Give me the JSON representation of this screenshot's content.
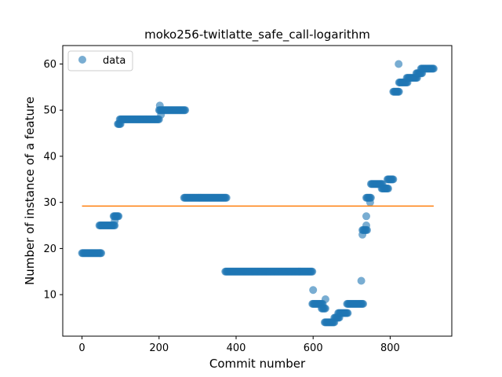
{
  "chart_data": {
    "type": "scatter",
    "title": "moko256-twitlatte_safe_call-logarithm",
    "xlabel": "Commit number",
    "ylabel": "Number of instance of a feature",
    "xlim": [
      -50,
      960
    ],
    "ylim": [
      1,
      64
    ],
    "xticks": [
      0,
      200,
      400,
      600,
      800
    ],
    "yticks": [
      10,
      20,
      30,
      40,
      50,
      60
    ],
    "grid": false,
    "legend_position": "top-left",
    "colors": {
      "data": "#1f77b4",
      "fit": "#ff7f0e"
    },
    "series": [
      {
        "name": "data",
        "kind": "markers",
        "segments": [
          {
            "x_start": 0,
            "x_end": 50,
            "y": 19
          },
          {
            "x_start": 45,
            "x_end": 85,
            "y": 25
          },
          {
            "x_start": 82,
            "x_end": 95,
            "y": 27
          },
          {
            "x_start": 93,
            "x_end": 100,
            "y": 47
          },
          {
            "x_start": 98,
            "x_end": 200,
            "y": 48
          },
          {
            "x_start": 200,
            "x_end": 268,
            "y": 50
          },
          {
            "x_start": 265,
            "x_end": 375,
            "y": 31
          },
          {
            "x_start": 372,
            "x_end": 598,
            "y": 15
          },
          {
            "x_start": 598,
            "x_end": 625,
            "y": 8
          },
          {
            "x_start": 622,
            "x_end": 632,
            "y": 7
          },
          {
            "x_start": 630,
            "x_end": 655,
            "y": 4
          },
          {
            "x_start": 655,
            "x_end": 668,
            "y": 5
          },
          {
            "x_start": 665,
            "x_end": 690,
            "y": 6
          },
          {
            "x_start": 688,
            "x_end": 730,
            "y": 8
          },
          {
            "x_start": 728,
            "x_end": 740,
            "y": 24
          },
          {
            "x_start": 738,
            "x_end": 750,
            "y": 31
          },
          {
            "x_start": 750,
            "x_end": 780,
            "y": 34
          },
          {
            "x_start": 778,
            "x_end": 795,
            "y": 33
          },
          {
            "x_start": 793,
            "x_end": 808,
            "y": 35
          },
          {
            "x_start": 808,
            "x_end": 823,
            "y": 54
          },
          {
            "x_start": 823,
            "x_end": 845,
            "y": 56
          },
          {
            "x_start": 843,
            "x_end": 870,
            "y": 57
          },
          {
            "x_start": 868,
            "x_end": 883,
            "y": 58
          },
          {
            "x_start": 880,
            "x_end": 913,
            "y": 59
          }
        ],
        "points": [
          {
            "x": 85,
            "y": 26
          },
          {
            "x": 202,
            "y": 51
          },
          {
            "x": 205,
            "y": 49
          },
          {
            "x": 600,
            "y": 11
          },
          {
            "x": 632,
            "y": 9
          },
          {
            "x": 725,
            "y": 13
          },
          {
            "x": 728,
            "y": 23
          },
          {
            "x": 738,
            "y": 25
          },
          {
            "x": 738,
            "y": 27
          },
          {
            "x": 748,
            "y": 30
          },
          {
            "x": 822,
            "y": 60
          }
        ]
      },
      {
        "kind": "line",
        "x": [
          0,
          913
        ],
        "y": [
          29.2,
          29.2
        ]
      }
    ]
  }
}
